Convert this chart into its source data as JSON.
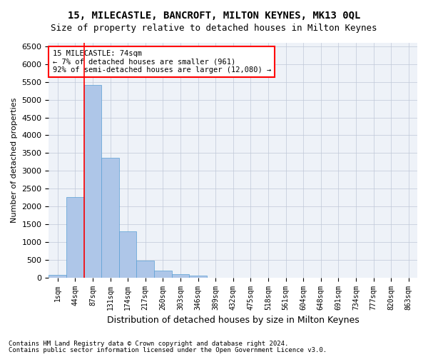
{
  "title": "15, MILECASTLE, BANCROFT, MILTON KEYNES, MK13 0QL",
  "subtitle": "Size of property relative to detached houses in Milton Keynes",
  "xlabel": "Distribution of detached houses by size in Milton Keynes",
  "ylabel": "Number of detached properties",
  "footnote1": "Contains HM Land Registry data © Crown copyright and database right 2024.",
  "footnote2": "Contains public sector information licensed under the Open Government Licence v3.0.",
  "annotation_line1": "15 MILECASTLE: 74sqm",
  "annotation_line2": "← 7% of detached houses are smaller (961)",
  "annotation_line3": "92% of semi-detached houses are larger (12,080) →",
  "bar_values": [
    75,
    2270,
    5420,
    3360,
    1295,
    480,
    190,
    90,
    55,
    0,
    0,
    0,
    0,
    0,
    0,
    0,
    0,
    0,
    0,
    0,
    0
  ],
  "categories": [
    "1sqm",
    "44sqm",
    "87sqm",
    "131sqm",
    "174sqm",
    "217sqm",
    "260sqm",
    "303sqm",
    "346sqm",
    "389sqm",
    "432sqm",
    "475sqm",
    "518sqm",
    "561sqm",
    "604sqm",
    "648sqm",
    "691sqm",
    "734sqm",
    "777sqm",
    "820sqm",
    "863sqm"
  ],
  "bar_color": "#aec6e8",
  "bar_edge_color": "#5a9fd4",
  "marker_color": "red",
  "ylim": [
    0,
    6600
  ],
  "yticks": [
    0,
    500,
    1000,
    1500,
    2000,
    2500,
    3000,
    3500,
    4000,
    4500,
    5000,
    5500,
    6000,
    6500
  ],
  "annotation_box_color": "white",
  "annotation_box_edge_color": "red",
  "grid_color": "#c0c8d8",
  "bg_color": "#eef2f8"
}
